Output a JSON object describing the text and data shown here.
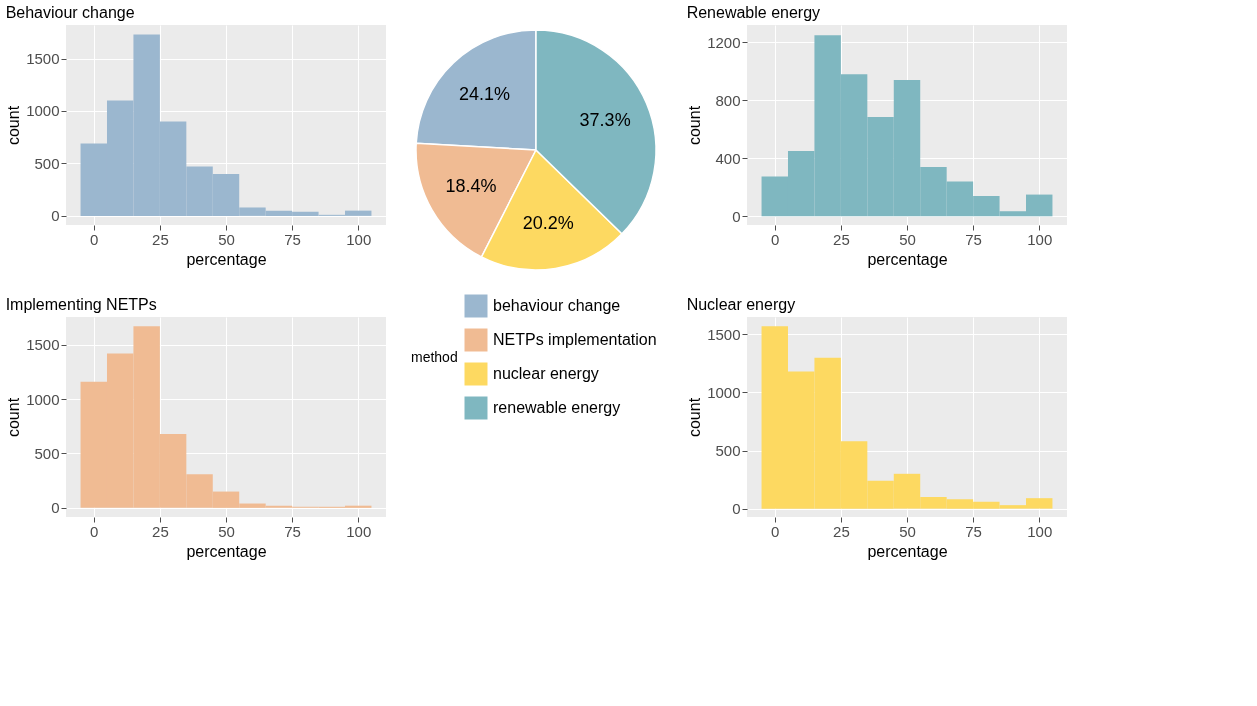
{
  "chart_data": [
    {
      "type": "histogram",
      "title": "Behaviour change",
      "xlabel": "percentage",
      "ylabel": "count",
      "color": "#9bb7cf",
      "bins": [
        -5,
        5,
        15,
        25,
        35,
        45,
        55,
        65,
        75,
        85,
        95,
        105
      ],
      "values": [
        690,
        1100,
        1730,
        900,
        470,
        400,
        80,
        50,
        40,
        10,
        50
      ],
      "xlim": [
        -10.5,
        110.5
      ],
      "xticks": [
        0,
        25,
        50,
        75,
        100
      ],
      "ylim": [
        -87,
        1820
      ],
      "yticks": [
        0,
        500,
        1000,
        1500
      ],
      "grid": true
    },
    {
      "type": "pie",
      "categories": [
        "behaviour change",
        "NETPs implementation",
        "nuclear energy",
        "renewable energy"
      ],
      "values": [
        24.1,
        18.4,
        20.2,
        37.3
      ],
      "colors": [
        "#9bb7cf",
        "#f0bb93",
        "#fdd961",
        "#7fb7c0"
      ],
      "value_labels": [
        "24.1%",
        "18.4%",
        "20.2%",
        "37.3%"
      ],
      "legend_title": "method",
      "legend": "bottom"
    },
    {
      "type": "histogram",
      "title": "Renewable energy",
      "xlabel": "percentage",
      "ylabel": "count",
      "color": "#7fb7c0",
      "bins": [
        -5,
        5,
        15,
        25,
        35,
        45,
        55,
        65,
        75,
        85,
        95,
        105
      ],
      "values": [
        275,
        450,
        1250,
        980,
        685,
        940,
        340,
        240,
        140,
        35,
        150
      ],
      "xlim": [
        -10.5,
        110.5
      ],
      "xticks": [
        0,
        25,
        50,
        75,
        100
      ],
      "ylim": [
        -60,
        1320
      ],
      "yticks": [
        0,
        400,
        800,
        1200
      ],
      "grid": true
    },
    {
      "type": "histogram",
      "title": "Implementing NETPs",
      "xlabel": "percentage",
      "ylabel": "count",
      "color": "#f0bb93",
      "bins": [
        -5,
        5,
        15,
        25,
        35,
        45,
        55,
        65,
        75,
        85,
        95,
        105
      ],
      "values": [
        1160,
        1420,
        1670,
        680,
        310,
        150,
        40,
        20,
        10,
        10,
        20
      ],
      "xlim": [
        -10.5,
        110.5
      ],
      "xticks": [
        0,
        25,
        50,
        75,
        100
      ],
      "ylim": [
        -84,
        1755
      ],
      "yticks": [
        0,
        500,
        1000,
        1500
      ],
      "grid": true
    },
    {
      "type": "histogram",
      "title": "Nuclear energy",
      "xlabel": "percentage",
      "ylabel": "count",
      "color": "#fdd961",
      "bins": [
        -5,
        5,
        15,
        25,
        35,
        45,
        55,
        65,
        75,
        85,
        95,
        105
      ],
      "values": [
        1570,
        1180,
        1300,
        580,
        240,
        300,
        100,
        80,
        60,
        30,
        90
      ],
      "xlim": [
        -10.5,
        110.5
      ],
      "xticks": [
        0,
        25,
        50,
        75,
        100
      ],
      "ylim": [
        -72,
        1650
      ],
      "yticks": [
        0,
        500,
        1000,
        1500
      ],
      "grid": true
    }
  ]
}
